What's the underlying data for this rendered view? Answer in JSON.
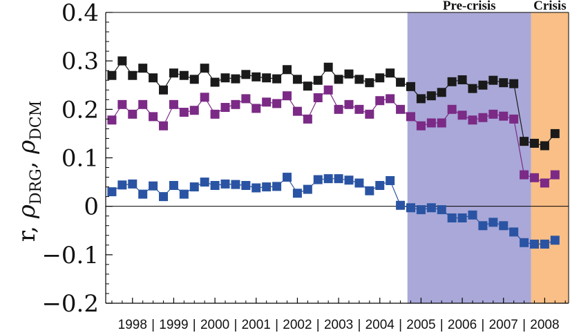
{
  "chart_data": {
    "type": "scatter",
    "ylabel": "r, ρDRG, ρDCM",
    "ylabel_parts": {
      "lead": "r, ",
      "rho_symbol": "ρ",
      "sub1": "DRG",
      "sep": ", ",
      "sub2": "DCM"
    },
    "ylim": [
      -0.2,
      0.4
    ],
    "yticks": [
      {
        "value": 0.4,
        "label": "0.4"
      },
      {
        "value": 0.3,
        "label": "0.3"
      },
      {
        "value": 0.2,
        "label": "0.2"
      },
      {
        "value": 0.1,
        "label": "0.1"
      },
      {
        "value": 0,
        "label": "0"
      },
      {
        "value": -0.1,
        "label": "−0.1"
      },
      {
        "value": -0.2,
        "label": "−0.2"
      }
    ],
    "xlim": [
      1997.35,
      2008.58
    ],
    "xtick_labels": [
      {
        "x": 1998,
        "label": "1998"
      },
      {
        "x": 1999,
        "label": "1999"
      },
      {
        "x": 2000,
        "label": "2000"
      },
      {
        "x": 2001,
        "label": "2001"
      },
      {
        "x": 2002,
        "label": "2002"
      },
      {
        "x": 2003,
        "label": "2003"
      },
      {
        "x": 2004,
        "label": "2004"
      },
      {
        "x": 2005,
        "label": "2005"
      },
      {
        "x": 2006,
        "label": "2006"
      },
      {
        "x": 2007,
        "label": "2007"
      },
      {
        "x": 2008,
        "label": "2008"
      }
    ],
    "xtick_separator": "|",
    "regions": [
      {
        "label": "Pre-crisis",
        "x_start": 2004.67,
        "x_end": 2007.67,
        "color": "#a9a8d8"
      },
      {
        "label": "Crisis",
        "x_start": 2007.67,
        "x_end": 2008.58,
        "color": "#f9bf86"
      }
    ],
    "x": [
      1997.5,
      1997.75,
      1998.0,
      1998.25,
      1998.5,
      1998.75,
      1999.0,
      1999.25,
      1999.5,
      1999.75,
      2000.0,
      2000.25,
      2000.5,
      2000.75,
      2001.0,
      2001.25,
      2001.5,
      2001.75,
      2002.0,
      2002.25,
      2002.5,
      2002.75,
      2003.0,
      2003.25,
      2003.5,
      2003.75,
      2004.0,
      2004.25,
      2004.5,
      2004.75,
      2005.0,
      2005.25,
      2005.5,
      2005.75,
      2006.0,
      2006.25,
      2006.5,
      2006.75,
      2007.0,
      2007.25,
      2007.5,
      2007.75,
      2008.0,
      2008.25,
      2008.5
    ],
    "series": [
      {
        "color": "#1a1a1a",
        "values": [
          0.27,
          0.3,
          0.27,
          0.285,
          0.265,
          0.24,
          0.275,
          0.27,
          0.262,
          0.285,
          0.256,
          0.265,
          0.263,
          0.272,
          0.267,
          0.265,
          0.263,
          0.282,
          0.262,
          0.248,
          0.26,
          0.287,
          0.262,
          0.273,
          0.262,
          0.255,
          0.265,
          0.275,
          0.256,
          0.247,
          0.222,
          0.228,
          0.235,
          0.257,
          0.261,
          0.243,
          0.25,
          0.26,
          0.255,
          0.253,
          0.134,
          0.13,
          0.125,
          0.15,
          null
        ]
      },
      {
        "color": "#7b2a86",
        "values": [
          0.178,
          0.21,
          0.19,
          0.21,
          0.185,
          0.166,
          0.21,
          0.194,
          0.198,
          0.225,
          0.19,
          0.204,
          0.21,
          0.222,
          0.202,
          0.215,
          0.212,
          0.228,
          0.196,
          0.18,
          0.224,
          0.24,
          0.2,
          0.21,
          0.2,
          0.19,
          0.218,
          0.222,
          0.2,
          0.185,
          0.166,
          0.172,
          0.172,
          0.2,
          0.188,
          0.178,
          0.183,
          0.19,
          0.186,
          0.18,
          0.065,
          0.059,
          0.048,
          0.065,
          null
        ]
      },
      {
        "color": "#2a54a3",
        "values": [
          0.03,
          0.044,
          0.046,
          0.025,
          0.042,
          0.02,
          0.043,
          0.025,
          0.04,
          0.05,
          0.043,
          0.046,
          0.045,
          0.043,
          0.038,
          0.04,
          0.041,
          0.06,
          0.027,
          0.035,
          0.055,
          0.057,
          0.057,
          0.054,
          0.048,
          0.032,
          0.043,
          0.053,
          0.002,
          -0.003,
          -0.007,
          -0.003,
          -0.007,
          -0.024,
          -0.024,
          -0.018,
          -0.04,
          -0.033,
          -0.04,
          -0.053,
          -0.075,
          -0.078,
          -0.078,
          -0.07,
          null
        ]
      }
    ],
    "zero_line": true,
    "grid": false,
    "legend": "none"
  }
}
